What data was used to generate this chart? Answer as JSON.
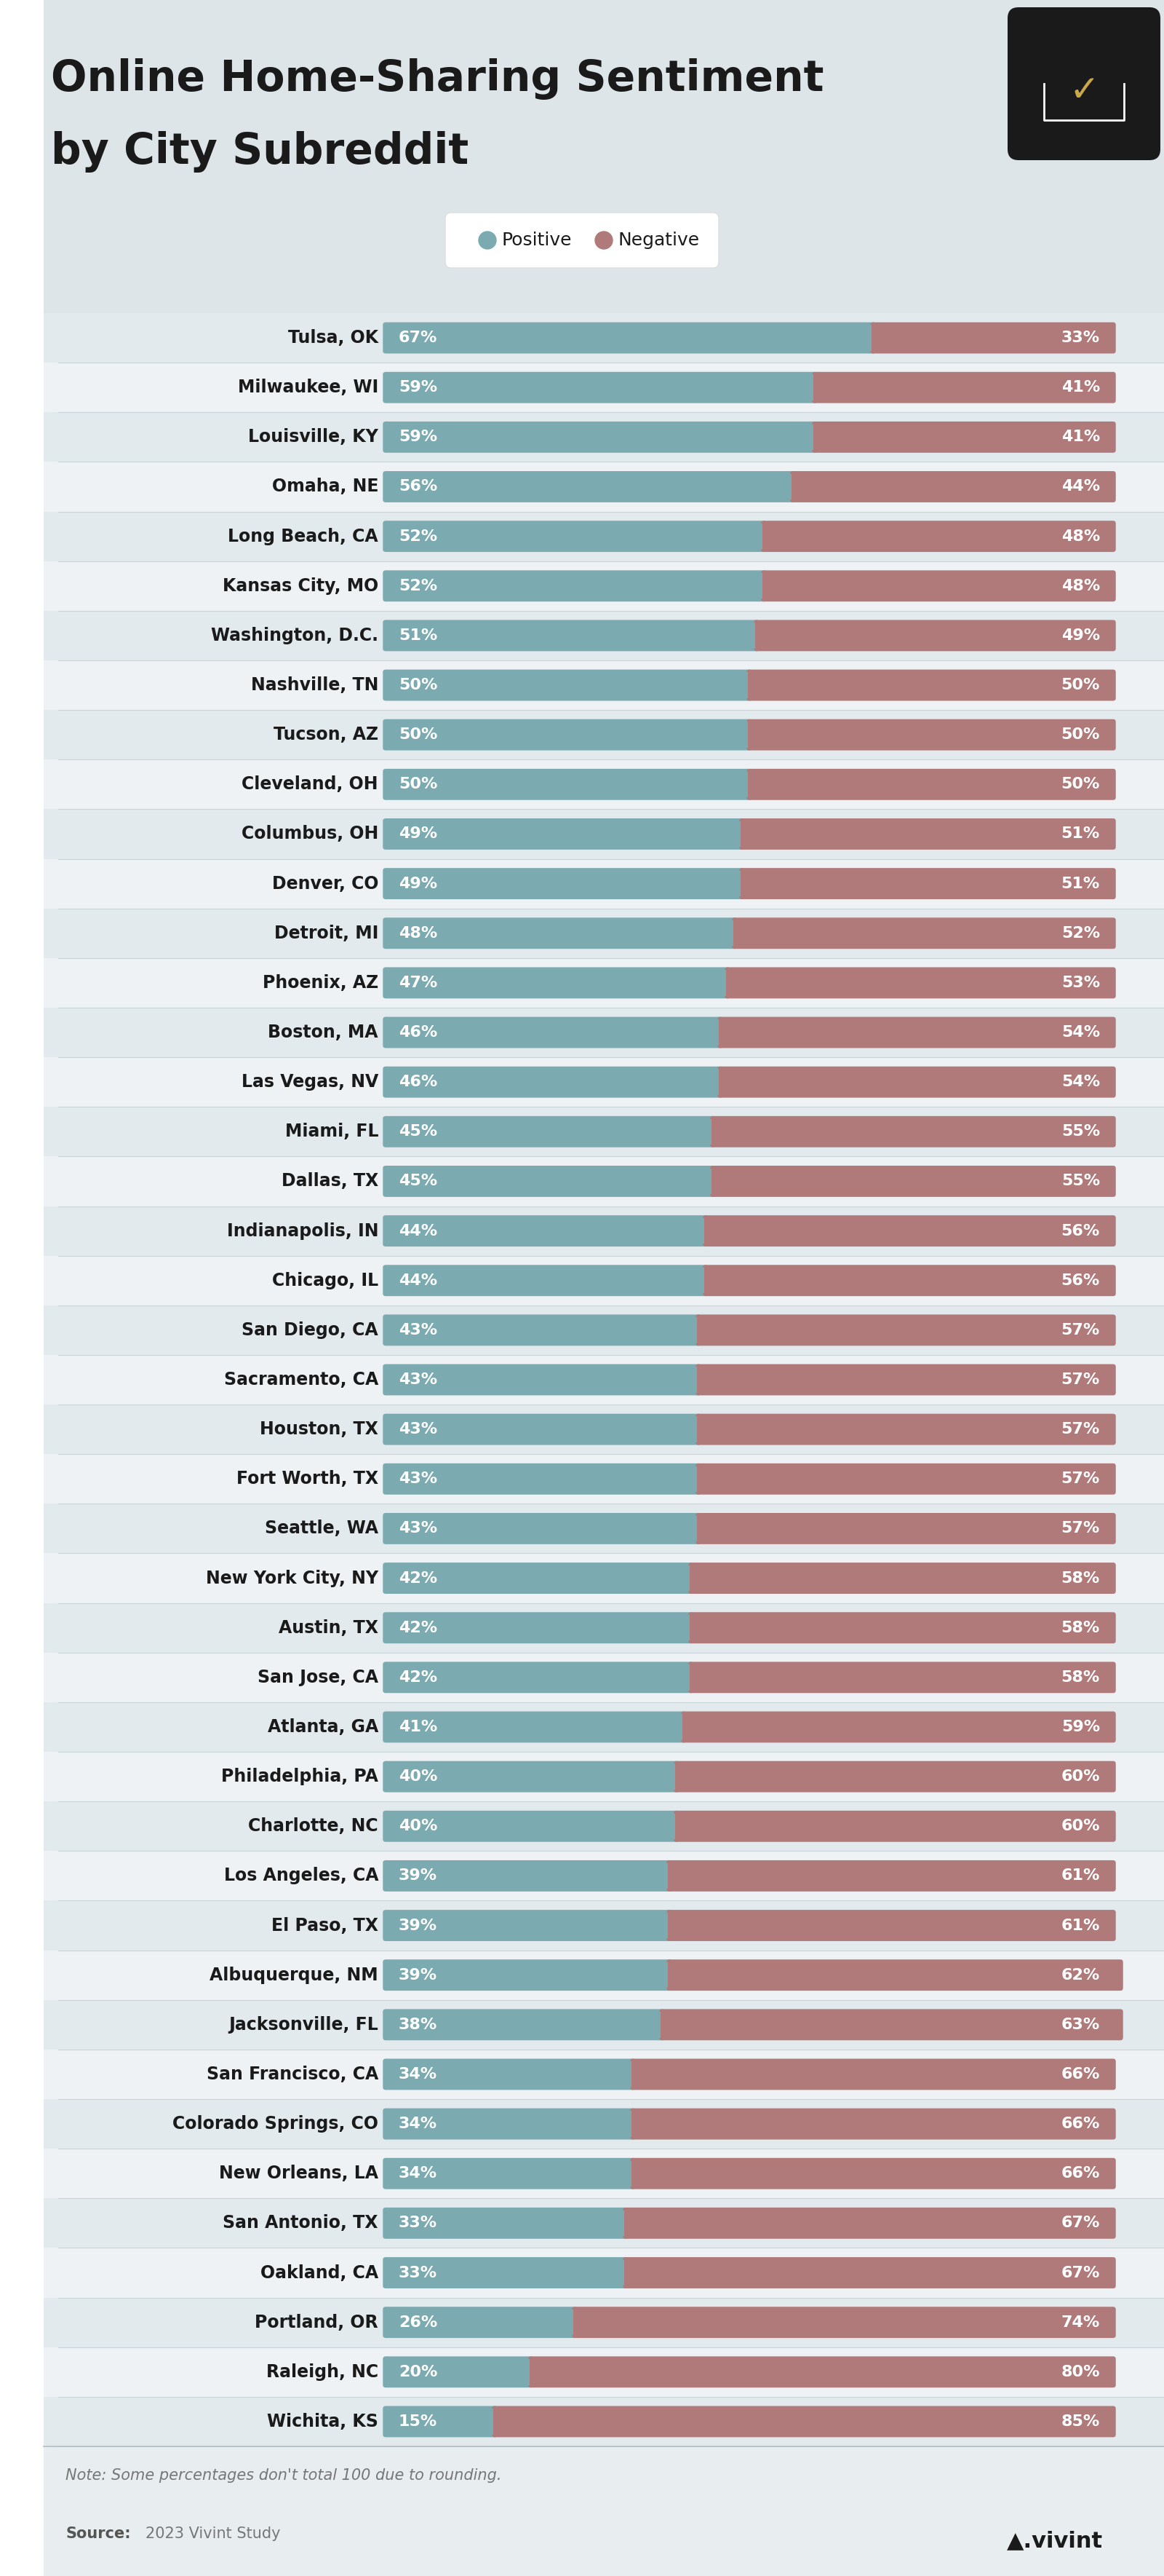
{
  "title_line1": "Online Home-Sharing Sentiment",
  "title_line2": "by City Subreddit",
  "cities": [
    "Tulsa, OK",
    "Milwaukee, WI",
    "Louisville, KY",
    "Omaha, NE",
    "Long Beach, CA",
    "Kansas City, MO",
    "Washington, D.C.",
    "Nashville, TN",
    "Tucson, AZ",
    "Cleveland, OH",
    "Columbus, OH",
    "Denver, CO",
    "Detroit, MI",
    "Phoenix, AZ",
    "Boston, MA",
    "Las Vegas, NV",
    "Miami, FL",
    "Dallas, TX",
    "Indianapolis, IN",
    "Chicago, IL",
    "San Diego, CA",
    "Sacramento, CA",
    "Houston, TX",
    "Fort Worth, TX",
    "Seattle, WA",
    "New York City, NY",
    "Austin, TX",
    "San Jose, CA",
    "Atlanta, GA",
    "Philadelphia, PA",
    "Charlotte, NC",
    "Los Angeles, CA",
    "El Paso, TX",
    "Albuquerque, NM",
    "Jacksonville, FL",
    "San Francisco, CA",
    "Colorado Springs, CO",
    "New Orleans, LA",
    "San Antonio, TX",
    "Oakland, CA",
    "Portland, OR",
    "Raleigh, NC",
    "Wichita, KS"
  ],
  "positive": [
    67,
    59,
    59,
    56,
    52,
    52,
    51,
    50,
    50,
    50,
    49,
    49,
    48,
    47,
    46,
    46,
    45,
    45,
    44,
    44,
    43,
    43,
    43,
    43,
    43,
    42,
    42,
    42,
    41,
    40,
    40,
    39,
    39,
    39,
    38,
    34,
    34,
    34,
    33,
    33,
    26,
    20,
    15
  ],
  "negative": [
    33,
    41,
    41,
    44,
    48,
    48,
    49,
    50,
    50,
    50,
    51,
    51,
    52,
    53,
    54,
    54,
    55,
    55,
    56,
    56,
    57,
    57,
    57,
    57,
    57,
    58,
    58,
    58,
    59,
    60,
    60,
    61,
    61,
    62,
    63,
    66,
    66,
    66,
    67,
    67,
    74,
    80,
    85
  ],
  "positive_color": "#7BAAB0",
  "negative_color": "#B07A7A",
  "header_bg": "#DEE5E8",
  "chart_bg": "#E8EDEF",
  "row_even_bg": "#E2EAED",
  "row_odd_bg": "#EEF2F4",
  "positive_label": "Positive",
  "negative_label": "Negative",
  "note": "Note: Some percentages don't total 100 due to rounding.",
  "source_bold": "Source:",
  "source_text": "2023 Vivint Study"
}
